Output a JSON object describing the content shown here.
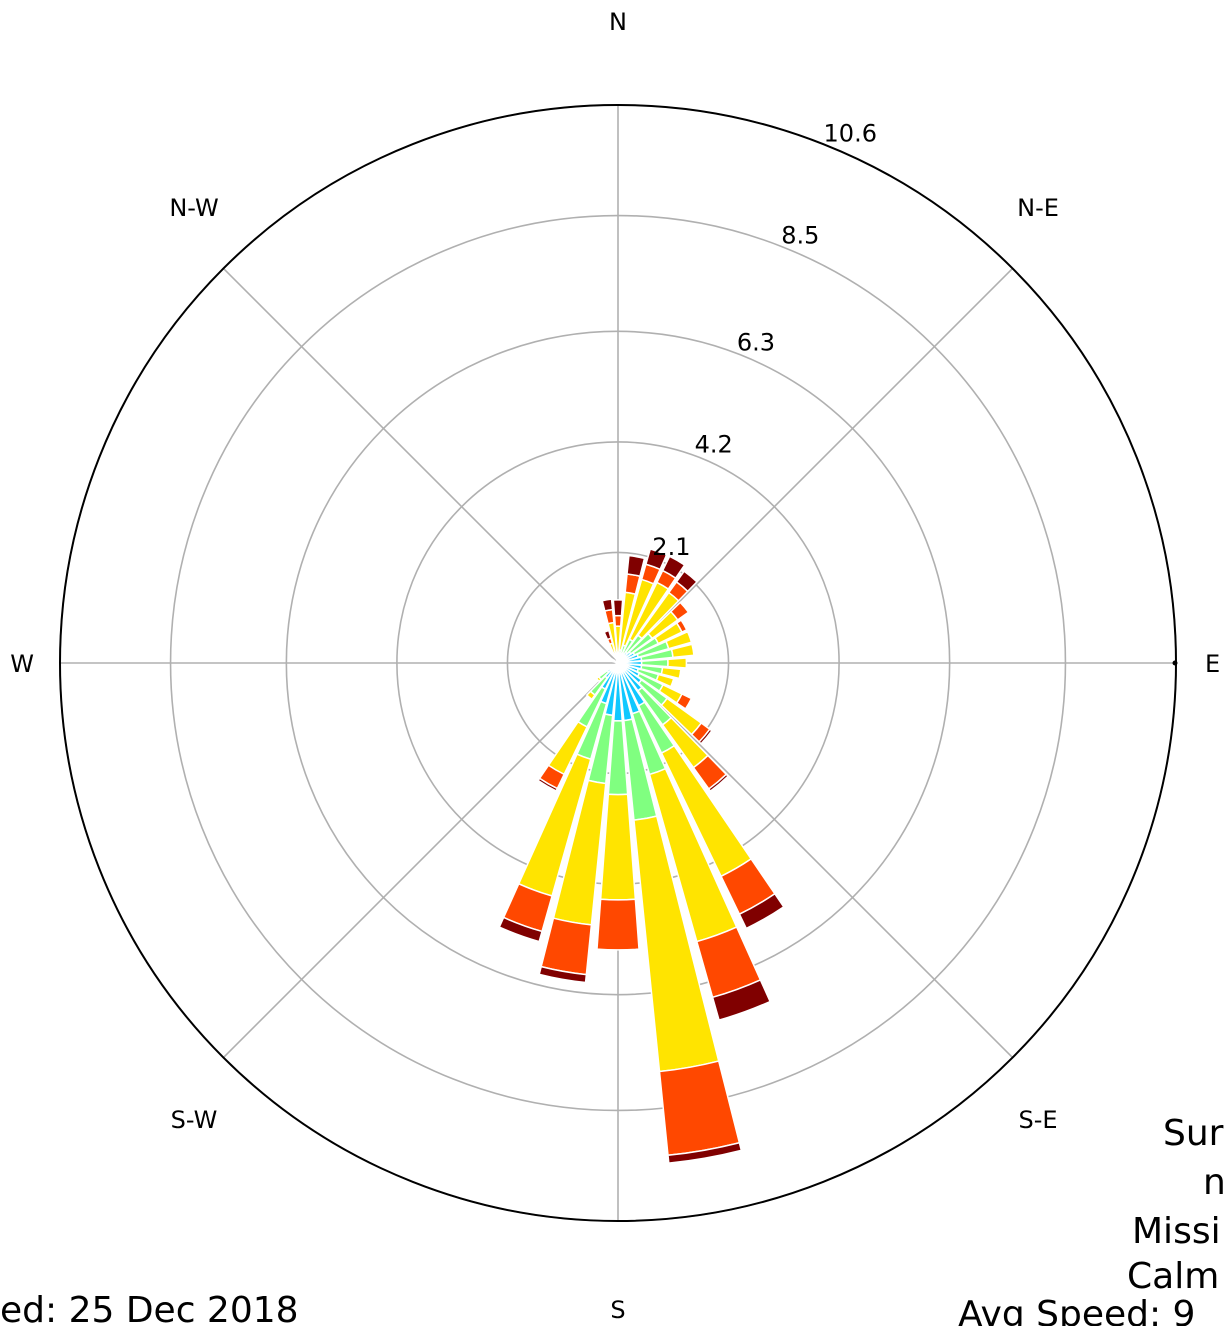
{
  "chart_data": {
    "type": "windrose",
    "directions": [
      "N",
      "N-E",
      "E",
      "S-E",
      "S",
      "S-W",
      "W",
      "N-W"
    ],
    "radial_ticks": [
      "2.1",
      "4.2",
      "6.3",
      "8.5",
      "10.6"
    ],
    "radial_tick_values": [
      2.1,
      4.2,
      6.3,
      8.5,
      10.6
    ],
    "rmax": 10.6,
    "bin_colors": [
      "#1010c8",
      "#10c8ff",
      "#80ff80",
      "#ffe400",
      "#ff4800",
      "#800000"
    ],
    "bins": [
      {
        "angle": 0,
        "values": [
          0.05,
          0.05,
          0.1,
          0.5,
          0.2,
          0.3
        ]
      },
      {
        "angle": 10,
        "values": [
          0.05,
          0.1,
          0.1,
          1.1,
          0.35,
          0.35
        ]
      },
      {
        "angle": 20,
        "values": [
          0.05,
          0.1,
          0.2,
          1.3,
          0.3,
          0.3
        ]
      },
      {
        "angle": 30,
        "values": [
          0.05,
          0.15,
          0.3,
          1.2,
          0.25,
          0.3
        ]
      },
      {
        "angle": 40,
        "values": [
          0.05,
          0.2,
          0.4,
          1.0,
          0.25,
          0.25
        ]
      },
      {
        "angle": 50,
        "values": [
          0.05,
          0.25,
          0.5,
          0.6,
          0.25,
          0.0
        ]
      },
      {
        "angle": 60,
        "values": [
          0.05,
          0.3,
          0.5,
          0.5,
          0.1,
          0.0
        ]
      },
      {
        "angle": 70,
        "values": [
          0.05,
          0.35,
          0.6,
          0.45,
          0.0,
          0.0
        ]
      },
      {
        "angle": 80,
        "values": [
          0.05,
          0.4,
          0.6,
          0.4,
          0.0,
          0.0
        ]
      },
      {
        "angle": 90,
        "values": [
          0.05,
          0.4,
          0.5,
          0.35,
          0.0,
          0.0
        ]
      },
      {
        "angle": 100,
        "values": [
          0.05,
          0.4,
          0.4,
          0.35,
          0.0,
          0.0
        ]
      },
      {
        "angle": 110,
        "values": [
          0.05,
          0.35,
          0.4,
          0.3,
          0.0,
          0.0
        ]
      },
      {
        "angle": 120,
        "values": [
          0.05,
          0.4,
          0.5,
          0.4,
          0.2,
          0.0
        ]
      },
      {
        "angle": 130,
        "values": [
          0.05,
          0.5,
          0.6,
          0.8,
          0.2,
          0.05
        ]
      },
      {
        "angle": 140,
        "values": [
          0.05,
          0.6,
          0.8,
          1.0,
          0.5,
          0.05
        ]
      },
      {
        "angle": 150,
        "values": [
          0.1,
          0.8,
          1.0,
          2.6,
          0.8,
          0.3
        ]
      },
      {
        "angle": 160,
        "values": [
          0.1,
          0.9,
          1.2,
          3.3,
          1.1,
          0.45
        ]
      },
      {
        "angle": 170,
        "values": [
          0.1,
          1.0,
          1.9,
          4.8,
          1.6,
          0.15
        ]
      },
      {
        "angle": 180,
        "values": [
          0.1,
          1.0,
          1.4,
          2.0,
          0.95,
          0.0
        ]
      },
      {
        "angle": 190,
        "values": [
          0.1,
          0.9,
          1.3,
          2.7,
          0.95,
          0.15
        ]
      },
      {
        "angle": 200,
        "values": [
          0.1,
          0.7,
          1.1,
          2.7,
          0.7,
          0.2
        ]
      },
      {
        "angle": 210,
        "values": [
          0.05,
          0.5,
          0.8,
          1.0,
          0.3,
          0.05
        ]
      },
      {
        "angle": 220,
        "values": [
          0.05,
          0.3,
          0.4,
          0.1,
          0.0,
          0.0
        ]
      },
      {
        "angle": 230,
        "values": [
          0.05,
          0.2,
          0.2,
          0.05,
          0.0,
          0.0
        ]
      },
      {
        "angle": 240,
        "values": [
          0.05,
          0.1,
          0.05,
          0.0,
          0.0,
          0.0
        ]
      },
      {
        "angle": 290,
        "values": [
          0.0,
          0.02,
          0.02,
          0.05,
          0.05,
          0.0
        ]
      },
      {
        "angle": 300,
        "values": [
          0.0,
          0.02,
          0.02,
          0.05,
          0.05,
          0.0
        ]
      },
      {
        "angle": 340,
        "values": [
          0.02,
          0.02,
          0.05,
          0.3,
          0.1,
          0.15
        ]
      },
      {
        "angle": 350,
        "values": [
          0.02,
          0.05,
          0.1,
          0.6,
          0.25,
          0.2
        ]
      }
    ]
  },
  "footer": {
    "left_text": "ed: 25 Dec 2018",
    "right_lines": [
      "Sur",
      "n",
      "Missi",
      "Calm",
      "Avg Speed: 9"
    ]
  }
}
